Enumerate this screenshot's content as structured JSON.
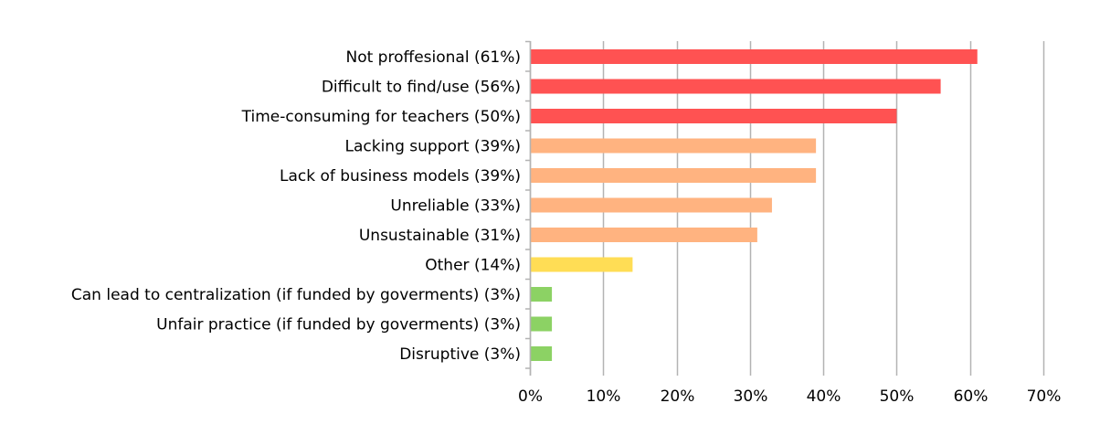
{
  "chart_data": {
    "type": "bar",
    "orientation": "horizontal",
    "categories": [
      "Not proffesional (61%)",
      "Difficult to find/use (56%)",
      "Time-consuming for teachers (50%)",
      "Lacking support (39%)",
      "Lack of business models (39%)",
      "Unreliable (33%)",
      "Unsustainable (31%)",
      "Other (14%)",
      "Can lead to centralization (if funded by goverments) (3%)",
      "Unfair practice (if funded by goverments) (3%)",
      "Disruptive (3%)"
    ],
    "values": [
      61,
      56,
      50,
      39,
      39,
      33,
      31,
      14,
      3,
      3,
      3
    ],
    "colors": [
      "#ff5252",
      "#ff5252",
      "#ff5252",
      "#ffb380",
      "#ffb380",
      "#ffb380",
      "#ffb380",
      "#ffdd55",
      "#8cd264",
      "#8cd264",
      "#8cd264"
    ],
    "xlim": [
      0,
      70
    ],
    "xticks": [
      0,
      10,
      20,
      30,
      40,
      50,
      60,
      70
    ],
    "xtick_labels": [
      "0%",
      "10%",
      "20%",
      "30%",
      "40%",
      "50%",
      "60%",
      "70%"
    ],
    "grid": true,
    "title": "",
    "xlabel": "",
    "ylabel": ""
  },
  "style": {
    "grid_color": "#b3b3b3",
    "axis_color": "#b3b3b3"
  }
}
